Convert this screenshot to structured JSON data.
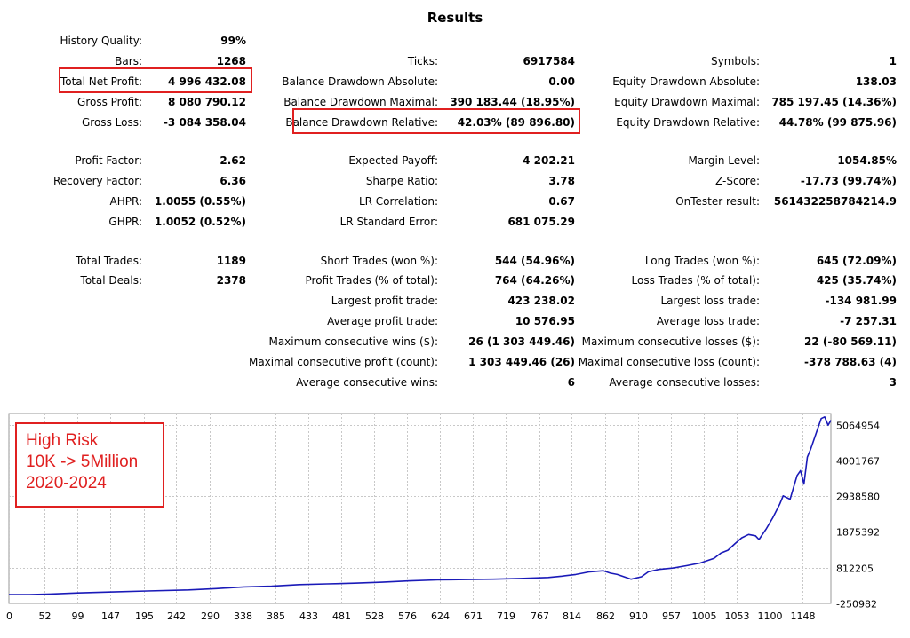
{
  "title": "Results",
  "colors": {
    "highlight": "#e02020",
    "equity_line": "#1a1ab8",
    "grid": "#c8c8c8"
  },
  "stats": {
    "history_quality": {
      "label": "History Quality:",
      "value": "99%"
    },
    "bars": {
      "label": "Bars:",
      "value": "1268"
    },
    "ticks": {
      "label": "Ticks:",
      "value": "6917584"
    },
    "symbols": {
      "label": "Symbols:",
      "value": "1"
    },
    "total_net_profit": {
      "label": "Total Net Profit:",
      "value": "4 996 432.08"
    },
    "balance_dd_abs": {
      "label": "Balance Drawdown Absolute:",
      "value": "0.00"
    },
    "equity_dd_abs": {
      "label": "Equity Drawdown Absolute:",
      "value": "138.03"
    },
    "gross_profit": {
      "label": "Gross Profit:",
      "value": "8 080 790.12"
    },
    "balance_dd_max": {
      "label": "Balance Drawdown Maximal:",
      "value": "390 183.44 (18.95%)"
    },
    "equity_dd_max": {
      "label": "Equity Drawdown Maximal:",
      "value": "785 197.45 (14.36%)"
    },
    "gross_loss": {
      "label": "Gross Loss:",
      "value": "-3 084 358.04"
    },
    "balance_dd_rel": {
      "label": "Balance Drawdown Relative:",
      "value": "42.03% (89 896.80)"
    },
    "equity_dd_rel": {
      "label": "Equity Drawdown Relative:",
      "value": "44.78% (99 875.96)"
    },
    "profit_factor": {
      "label": "Profit Factor:",
      "value": "2.62"
    },
    "expected_payoff": {
      "label": "Expected Payoff:",
      "value": "4 202.21"
    },
    "margin_level": {
      "label": "Margin Level:",
      "value": "1054.85%"
    },
    "recovery_factor": {
      "label": "Recovery Factor:",
      "value": "6.36"
    },
    "sharpe_ratio": {
      "label": "Sharpe Ratio:",
      "value": "3.78"
    },
    "z_score": {
      "label": "Z-Score:",
      "value": "-17.73 (99.74%)"
    },
    "ahpr": {
      "label": "AHPR:",
      "value": "1.0055 (0.55%)"
    },
    "lr_correlation": {
      "label": "LR Correlation:",
      "value": "0.67"
    },
    "ontester": {
      "label": "OnTester result:",
      "value": "561432258784214.9"
    },
    "ghpr": {
      "label": "GHPR:",
      "value": "1.0052 (0.52%)"
    },
    "lr_std_error": {
      "label": "LR Standard Error:",
      "value": "681 075.29"
    },
    "total_trades": {
      "label": "Total Trades:",
      "value": "1189"
    },
    "short_trades": {
      "label": "Short Trades (won %):",
      "value": "544 (54.96%)"
    },
    "long_trades": {
      "label": "Long Trades (won %):",
      "value": "645 (72.09%)"
    },
    "total_deals": {
      "label": "Total Deals:",
      "value": "2378"
    },
    "profit_trades": {
      "label": "Profit Trades (% of total):",
      "value": "764 (64.26%)"
    },
    "loss_trades": {
      "label": "Loss Trades (% of total):",
      "value": "425 (35.74%)"
    },
    "largest_profit": {
      "label": "Largest profit trade:",
      "value": "423 238.02"
    },
    "largest_loss": {
      "label": "Largest loss trade:",
      "value": "-134 981.99"
    },
    "avg_profit": {
      "label": "Average profit trade:",
      "value": "10 576.95"
    },
    "avg_loss": {
      "label": "Average loss trade:",
      "value": "-7 257.31"
    },
    "max_consec_wins": {
      "label": "Maximum consecutive wins ($):",
      "value": "26 (1 303 449.46)"
    },
    "max_consec_losses": {
      "label": "Maximum consecutive losses ($):",
      "value": "22 (-80 569.11)"
    },
    "maximal_consec_profit": {
      "label": "Maximal consecutive profit (count):",
      "value": "1 303 449.46 (26)"
    },
    "maximal_consec_loss": {
      "label": "Maximal consecutive loss (count):",
      "value": "-378 788.63 (4)"
    },
    "avg_consec_wins": {
      "label": "Average consecutive wins:",
      "value": "6"
    },
    "avg_consec_losses": {
      "label": "Average consecutive losses:",
      "value": "3"
    }
  },
  "annotation": {
    "lines": [
      "High Risk",
      "10K -> 5Million",
      "2020-2024"
    ]
  },
  "chart_data": {
    "type": "line",
    "title": "",
    "xlabel": "",
    "ylabel": "",
    "xlim": [
      0,
      1189
    ],
    "ylim": [
      -250982,
      5400000
    ],
    "x_ticks": [
      "0",
      "52",
      "99",
      "147",
      "195",
      "242",
      "290",
      "338",
      "385",
      "433",
      "481",
      "528",
      "576",
      "624",
      "671",
      "719",
      "767",
      "814",
      "862",
      "910",
      "957",
      "1005",
      "1053",
      "1100",
      "1148"
    ],
    "y_ticks": [
      "5064954",
      "4001767",
      "2938580",
      "1875392",
      "812205",
      "-250982"
    ],
    "grid": true,
    "series": [
      {
        "x": [
          0,
          30,
          60,
          100,
          150,
          200,
          260,
          300,
          340,
          380,
          420,
          460,
          500,
          540,
          580,
          620,
          660,
          700,
          740,
          780,
          800,
          820,
          840,
          860,
          870,
          880,
          900,
          915,
          925,
          940,
          960,
          980,
          1000,
          1010,
          1020,
          1030,
          1040,
          1050,
          1060,
          1070,
          1080,
          1085,
          1095,
          1105,
          1115,
          1120,
          1130,
          1135,
          1140,
          1145,
          1150,
          1155,
          1160,
          1165,
          1170,
          1175,
          1180,
          1185,
          1189
        ],
        "values": [
          10000,
          12000,
          30000,
          60000,
          90000,
          120000,
          150000,
          190000,
          240000,
          260000,
          310000,
          330000,
          350000,
          380000,
          420000,
          450000,
          460000,
          470000,
          490000,
          520000,
          560000,
          610000,
          690000,
          720000,
          650000,
          610000,
          470000,
          540000,
          690000,
          760000,
          800000,
          870000,
          950000,
          1020000,
          1090000,
          1250000,
          1330000,
          1520000,
          1700000,
          1800000,
          1760000,
          1650000,
          1950000,
          2300000,
          2700000,
          2950000,
          2850000,
          3200000,
          3550000,
          3700000,
          3300000,
          4100000,
          4350000,
          4650000,
          4950000,
          5250000,
          5300000,
          5050000,
          5200000
        ]
      }
    ]
  }
}
